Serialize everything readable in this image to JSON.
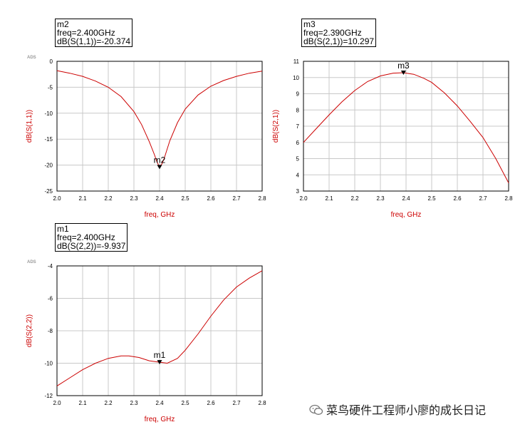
{
  "chart_data": [
    {
      "type": "line",
      "title": "",
      "xlabel": "freq, GHz",
      "ylabel": "dB(S(1,1))",
      "corner_label": "ADS",
      "xlim": [
        2.0,
        2.8
      ],
      "ylim": [
        -25,
        0
      ],
      "xticks": [
        "2.0",
        "2.1",
        "2.2",
        "2.3",
        "2.4",
        "2.5",
        "2.6",
        "2.7",
        "2.8"
      ],
      "yticks": [
        "0",
        "-5",
        "-10",
        "-15",
        "-20",
        "-25"
      ],
      "grid": true,
      "line_color": "#cc0000",
      "series": [
        {
          "x": [
            2.0,
            2.05,
            2.1,
            2.15,
            2.2,
            2.25,
            2.3,
            2.33,
            2.36,
            2.38,
            2.39,
            2.4,
            2.41,
            2.42,
            2.44,
            2.47,
            2.5,
            2.55,
            2.6,
            2.65,
            2.7,
            2.75,
            2.8
          ],
          "values": [
            -1.8,
            -2.3,
            -2.9,
            -3.8,
            -5.0,
            -6.8,
            -9.7,
            -12.2,
            -15.5,
            -18.0,
            -19.4,
            -20.374,
            -19.7,
            -18.4,
            -15.3,
            -11.8,
            -9.2,
            -6.5,
            -4.8,
            -3.7,
            -2.9,
            -2.3,
            -1.9
          ]
        }
      ],
      "marker": {
        "name": "m2",
        "x": 2.4,
        "y": -20.374,
        "lines": [
          "m2",
          "freq=2.400GHz",
          "dB(S(1,1))=-20.374"
        ]
      }
    },
    {
      "type": "line",
      "title": "",
      "xlabel": "freq, GHz",
      "ylabel": "dB(S(2,1))",
      "corner_label": "",
      "xlim": [
        2.0,
        2.8
      ],
      "ylim": [
        3,
        11
      ],
      "xticks": [
        "2.0",
        "2.1",
        "2.2",
        "2.3",
        "2.4",
        "2.5",
        "2.6",
        "2.7",
        "2.8"
      ],
      "yticks": [
        "11",
        "10",
        "9",
        "8",
        "7",
        "6",
        "5",
        "4",
        "3"
      ],
      "grid": true,
      "line_color": "#cc0000",
      "series": [
        {
          "x": [
            2.0,
            2.05,
            2.1,
            2.15,
            2.2,
            2.25,
            2.3,
            2.35,
            2.39,
            2.43,
            2.47,
            2.5,
            2.55,
            2.6,
            2.65,
            2.7,
            2.75,
            2.8
          ],
          "values": [
            6.0,
            6.85,
            7.7,
            8.5,
            9.2,
            9.75,
            10.1,
            10.27,
            10.297,
            10.2,
            9.95,
            9.7,
            9.05,
            8.25,
            7.3,
            6.3,
            5.0,
            3.5
          ]
        }
      ],
      "marker": {
        "name": "m3",
        "x": 2.39,
        "y": 10.297,
        "lines": [
          "m3",
          "freq=2.390GHz",
          "dB(S(2,1))=10.297"
        ]
      }
    },
    {
      "type": "line",
      "title": "",
      "xlabel": "freq, GHz",
      "ylabel": "dB(S(2,2))",
      "corner_label": "ADS",
      "xlim": [
        2.0,
        2.8
      ],
      "ylim": [
        -12,
        -4
      ],
      "xticks": [
        "2.0",
        "2.1",
        "2.2",
        "2.3",
        "2.4",
        "2.5",
        "2.6",
        "2.7",
        "2.8"
      ],
      "yticks": [
        "-4",
        "-6",
        "-8",
        "-10",
        "-12"
      ],
      "grid": true,
      "line_color": "#cc0000",
      "series": [
        {
          "x": [
            2.0,
            2.05,
            2.1,
            2.15,
            2.2,
            2.25,
            2.28,
            2.32,
            2.36,
            2.4,
            2.43,
            2.47,
            2.5,
            2.55,
            2.6,
            2.65,
            2.7,
            2.75,
            2.8
          ],
          "values": [
            -11.4,
            -10.9,
            -10.4,
            -10.0,
            -9.7,
            -9.55,
            -9.55,
            -9.65,
            -9.85,
            -9.937,
            -10.0,
            -9.7,
            -9.2,
            -8.2,
            -7.1,
            -6.1,
            -5.3,
            -4.75,
            -4.3
          ]
        }
      ],
      "marker": {
        "name": "m1",
        "x": 2.4,
        "y": -9.937,
        "lines": [
          "m1",
          "freq=2.400GHz",
          "dB(S(2,2))=-9.937"
        ]
      }
    }
  ],
  "watermark": {
    "text": "菜鸟硬件工程师小廖的成长日记"
  }
}
